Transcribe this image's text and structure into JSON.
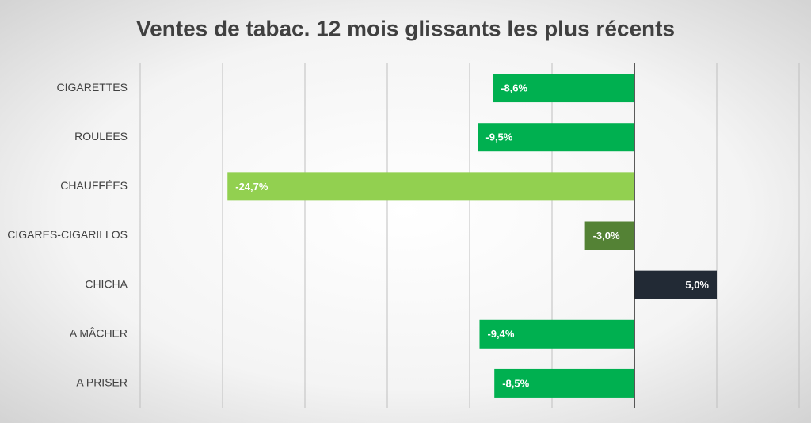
{
  "chart_data": {
    "type": "bar",
    "orientation": "horizontal",
    "title": "Ventes de tabac. 12 mois glissants les plus récents",
    "categories": [
      "CIGARETTES",
      "ROULÉES",
      "CHAUFFÉES",
      "CIGARES-CIGARILLOS",
      "CHICHA",
      "A MÂCHER",
      "A PRISER"
    ],
    "values": [
      -8.6,
      -9.5,
      -24.7,
      -3.0,
      5.0,
      -9.4,
      -8.5
    ],
    "value_labels": [
      "-8,6%",
      "-9,5%",
      "-24,7%",
      "-3,0%",
      "5,0%",
      "-9,4%",
      "-8,5%"
    ],
    "colors": [
      "#00b050",
      "#00b050",
      "#92d050",
      "#548235",
      "#222a35",
      "#00b050",
      "#00b050"
    ],
    "xlim": [
      -30,
      10
    ],
    "xticks": [
      -30,
      -25,
      -20,
      -15,
      -10,
      -5,
      0,
      5,
      10
    ],
    "grid": true
  }
}
